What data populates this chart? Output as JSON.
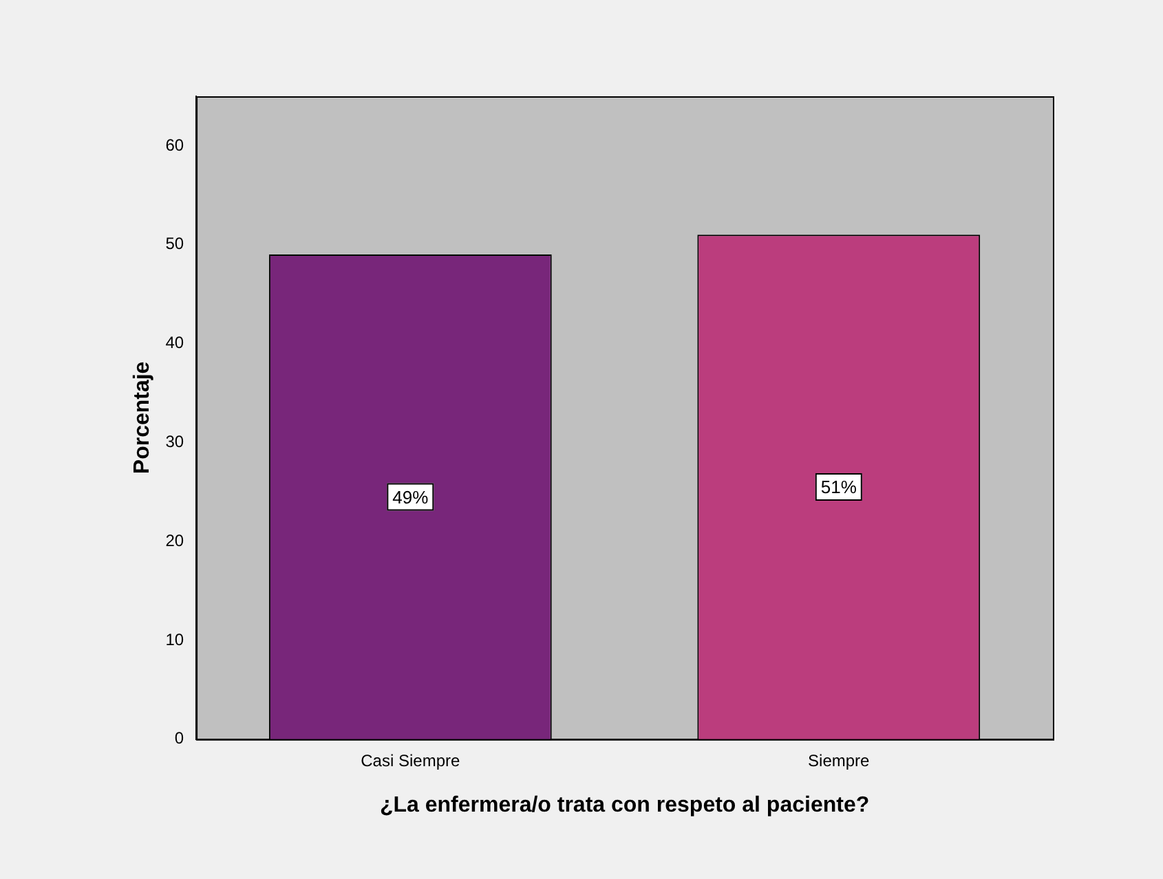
{
  "chart_data": {
    "type": "bar",
    "xlabel": "¿La enfermera/o trata con respeto al paciente?",
    "ylabel": "Porcentaje",
    "categories": [
      "Casi Siempre",
      "Siempre"
    ],
    "values": [
      49,
      51
    ],
    "colors": [
      "#78267a",
      "#bb3d7d"
    ],
    "value_labels": [
      "49%",
      "51%"
    ],
    "ylim": [
      0,
      65
    ],
    "yticks": [
      0,
      10,
      20,
      30,
      40,
      50,
      60
    ],
    "grid": false,
    "legend": false
  }
}
